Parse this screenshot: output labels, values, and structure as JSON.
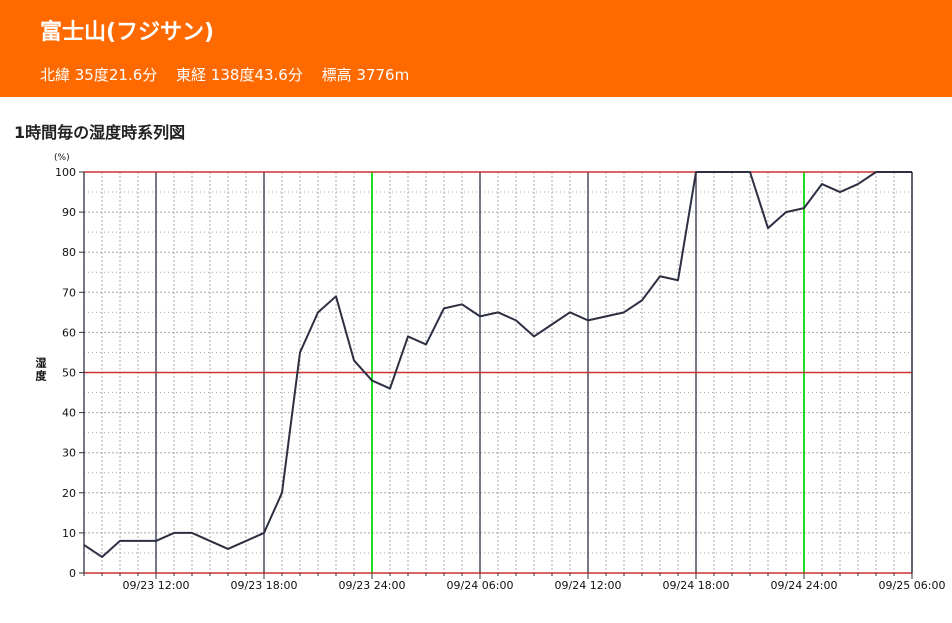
{
  "header": {
    "station_name": "富士山(フジサン)",
    "latitude": "北緯 35度21.6分",
    "longitude": "東経 138度43.6分",
    "elevation": "標高 3776m"
  },
  "chart_title": "1時間毎の湿度時系列図",
  "colors": {
    "header_bg": "#ff6a00",
    "line": "#2d3042",
    "minor_grid": "#a9a9a9",
    "major_grid_h": "#cc3333",
    "six_hour_grid": "#2d3042",
    "midday_grid": "#22dd22"
  },
  "chart_data": {
    "type": "line",
    "ylabel": "湿度",
    "unit": "(%)",
    "ylim": [
      0,
      100
    ],
    "yticks": [
      0,
      10,
      20,
      30,
      40,
      50,
      60,
      70,
      80,
      90,
      100
    ],
    "xlim": [
      "09/23 08:00",
      "09/25 06:00"
    ],
    "xtick_labels": [
      "09/23 12:00",
      "09/23 18:00",
      "09/23 24:00",
      "09/24 06:00",
      "09/24 12:00",
      "09/24 18:00",
      "09/24 24:00",
      "09/25 06:00"
    ],
    "grid": true,
    "series": [
      {
        "start": "09/23 08:00",
        "interval_hours": 1,
        "values": [
          7,
          4,
          8,
          8,
          8,
          10,
          10,
          8,
          6,
          8,
          10,
          20,
          55,
          65,
          69,
          53,
          48,
          46,
          59,
          57,
          66,
          67,
          64,
          65,
          63,
          59,
          62,
          65,
          63,
          64,
          65,
          68,
          74,
          73,
          100,
          100,
          100,
          100,
          86,
          90,
          91,
          97,
          95,
          97,
          100,
          100,
          100
        ]
      }
    ]
  }
}
